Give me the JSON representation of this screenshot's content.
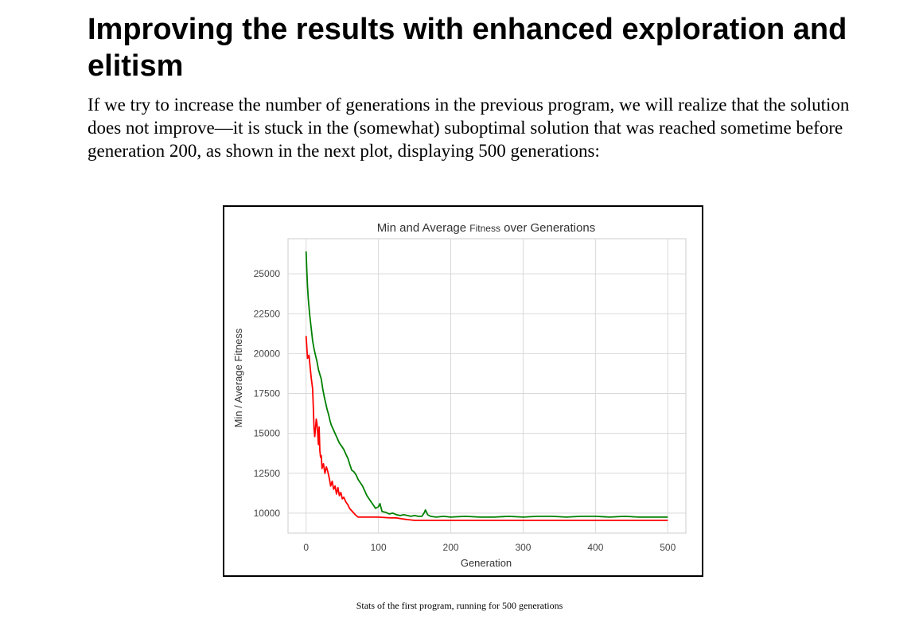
{
  "heading": "Improving the results with enhanced exploration and elitism",
  "paragraph": "If we try to increase the number of generations in the previous program, we will realize that the solution does not improve—it is stuck in the (somewhat) suboptimal solution that was reached sometime before generation 200, as shown in the next plot, displaying 500 generations:",
  "caption": "Stats of the first program, running for 500 generations",
  "chart_data": {
    "type": "line",
    "title_parts": [
      "Min and Average ",
      "Fitness",
      " over Generations"
    ],
    "xlabel": "Generation",
    "ylabel": "Min / Average Fitness",
    "xlim": [
      -25,
      525
    ],
    "ylim": [
      8750,
      27200
    ],
    "x_ticks": [
      0,
      100,
      200,
      300,
      400,
      500
    ],
    "y_ticks": [
      10000,
      12500,
      15000,
      17500,
      20000,
      22500,
      25000
    ],
    "grid": true,
    "series": [
      {
        "color": "#ff0000",
        "points": [
          [
            0,
            21100
          ],
          [
            2,
            19700
          ],
          [
            4,
            19900
          ],
          [
            5,
            19400
          ],
          [
            7,
            18500
          ],
          [
            9,
            17800
          ],
          [
            10,
            16600
          ],
          [
            11,
            15300
          ],
          [
            12,
            14800
          ],
          [
            14,
            15900
          ],
          [
            15,
            15600
          ],
          [
            16,
            15000
          ],
          [
            17,
            14300
          ],
          [
            18,
            15400
          ],
          [
            19,
            13900
          ],
          [
            20,
            13500
          ],
          [
            21,
            13600
          ],
          [
            22,
            12800
          ],
          [
            24,
            13100
          ],
          [
            26,
            12500
          ],
          [
            28,
            12900
          ],
          [
            30,
            12600
          ],
          [
            32,
            12200
          ],
          [
            34,
            11700
          ],
          [
            36,
            12000
          ],
          [
            38,
            11500
          ],
          [
            40,
            11700
          ],
          [
            42,
            11200
          ],
          [
            44,
            11600
          ],
          [
            46,
            11100
          ],
          [
            48,
            11300
          ],
          [
            50,
            10900
          ],
          [
            52,
            11000
          ],
          [
            55,
            10700
          ],
          [
            58,
            10500
          ],
          [
            60,
            10300
          ],
          [
            64,
            10100
          ],
          [
            68,
            9900
          ],
          [
            72,
            9750
          ],
          [
            80,
            9750
          ],
          [
            100,
            9750
          ],
          [
            110,
            9720
          ],
          [
            118,
            9700
          ],
          [
            125,
            9700
          ],
          [
            132,
            9650
          ],
          [
            140,
            9600
          ],
          [
            150,
            9550
          ],
          [
            200,
            9550
          ],
          [
            300,
            9550
          ],
          [
            400,
            9550
          ],
          [
            500,
            9550
          ]
        ]
      },
      {
        "color": "#008000",
        "points": [
          [
            0,
            26400
          ],
          [
            1,
            25200
          ],
          [
            2,
            24200
          ],
          [
            3,
            23400
          ],
          [
            5,
            22400
          ],
          [
            7,
            21600
          ],
          [
            9,
            20800
          ],
          [
            11,
            20300
          ],
          [
            13,
            19900
          ],
          [
            15,
            19500
          ],
          [
            17,
            19000
          ],
          [
            19,
            18700
          ],
          [
            21,
            18400
          ],
          [
            23,
            17800
          ],
          [
            25,
            17300
          ],
          [
            27,
            16900
          ],
          [
            29,
            16500
          ],
          [
            31,
            16200
          ],
          [
            33,
            15800
          ],
          [
            35,
            15500
          ],
          [
            37,
            15300
          ],
          [
            40,
            15000
          ],
          [
            43,
            14700
          ],
          [
            46,
            14400
          ],
          [
            49,
            14200
          ],
          [
            52,
            14000
          ],
          [
            55,
            13700
          ],
          [
            58,
            13400
          ],
          [
            60,
            13100
          ],
          [
            63,
            12700
          ],
          [
            66,
            12600
          ],
          [
            69,
            12400
          ],
          [
            72,
            12100
          ],
          [
            75,
            11900
          ],
          [
            78,
            11700
          ],
          [
            81,
            11400
          ],
          [
            84,
            11100
          ],
          [
            87,
            10900
          ],
          [
            90,
            10700
          ],
          [
            93,
            10500
          ],
          [
            96,
            10300
          ],
          [
            100,
            10400
          ],
          [
            102,
            10600
          ],
          [
            105,
            10100
          ],
          [
            110,
            10050
          ],
          [
            115,
            9950
          ],
          [
            120,
            10000
          ],
          [
            125,
            9900
          ],
          [
            130,
            9850
          ],
          [
            135,
            9900
          ],
          [
            140,
            9850
          ],
          [
            145,
            9800
          ],
          [
            150,
            9850
          ],
          [
            155,
            9800
          ],
          [
            160,
            9800
          ],
          [
            163,
            10000
          ],
          [
            165,
            10200
          ],
          [
            168,
            9900
          ],
          [
            172,
            9800
          ],
          [
            180,
            9750
          ],
          [
            190,
            9800
          ],
          [
            200,
            9750
          ],
          [
            220,
            9800
          ],
          [
            240,
            9750
          ],
          [
            260,
            9750
          ],
          [
            280,
            9800
          ],
          [
            300,
            9750
          ],
          [
            320,
            9800
          ],
          [
            340,
            9800
          ],
          [
            360,
            9750
          ],
          [
            380,
            9800
          ],
          [
            400,
            9800
          ],
          [
            420,
            9750
          ],
          [
            440,
            9800
          ],
          [
            460,
            9750
          ],
          [
            480,
            9750
          ],
          [
            500,
            9750
          ]
        ]
      }
    ]
  }
}
